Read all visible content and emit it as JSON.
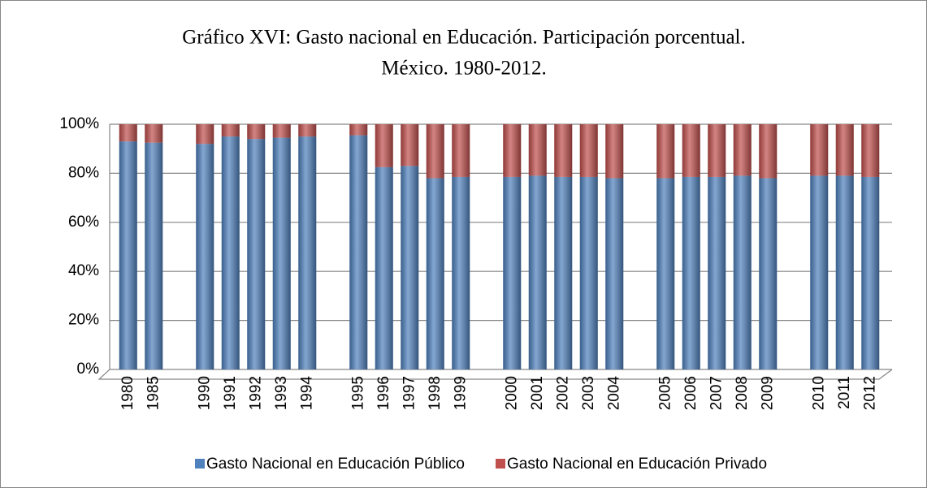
{
  "chart_data": {
    "type": "stacked_bar",
    "title": [
      "Gráfico XVI: Gasto nacional en Educación. Participación porcentual.",
      "México. 1980-2012."
    ],
    "categories": [
      "1980",
      "1985",
      null,
      "1990",
      "1991",
      "1992",
      "1993",
      "1994",
      null,
      "1995",
      "1996",
      "1997",
      "1998",
      "1999",
      null,
      "2000",
      "2001",
      "2002",
      "2003",
      "2004",
      null,
      "2005",
      "2006",
      "2007",
      "2008",
      "2009",
      null,
      "2010",
      "2011",
      "2012"
    ],
    "series": [
      {
        "name": "Gasto Nacional en Educación Público",
        "color": "#4f81bd",
        "values": [
          93,
          92.5,
          null,
          92,
          95,
          94,
          94.5,
          95,
          null,
          95.5,
          82.5,
          83,
          78,
          78.5,
          null,
          78.5,
          79,
          78.5,
          78.5,
          78,
          null,
          78,
          78.5,
          78.5,
          79,
          78,
          null,
          79,
          79,
          78.5
        ]
      },
      {
        "name": "Gasto Nacional en Educación Privado",
        "color": "#c0504d",
        "values": [
          7,
          7.5,
          null,
          8,
          5,
          6,
          5.5,
          5,
          null,
          4.5,
          17.5,
          17,
          22,
          21.5,
          null,
          21.5,
          21,
          21.5,
          21.5,
          22,
          null,
          22,
          21.5,
          21.5,
          21,
          22,
          null,
          21,
          21,
          21.5
        ]
      }
    ],
    "ylim": [
      0,
      100
    ],
    "yticks": [
      {
        "value": 0,
        "label": "0%"
      },
      {
        "value": 20,
        "label": "20%"
      },
      {
        "value": 40,
        "label": "40%"
      },
      {
        "value": 60,
        "label": "60%"
      },
      {
        "value": 80,
        "label": "80%"
      },
      {
        "value": 100,
        "label": "100%"
      }
    ],
    "grid": true,
    "legend": "bottom"
  }
}
